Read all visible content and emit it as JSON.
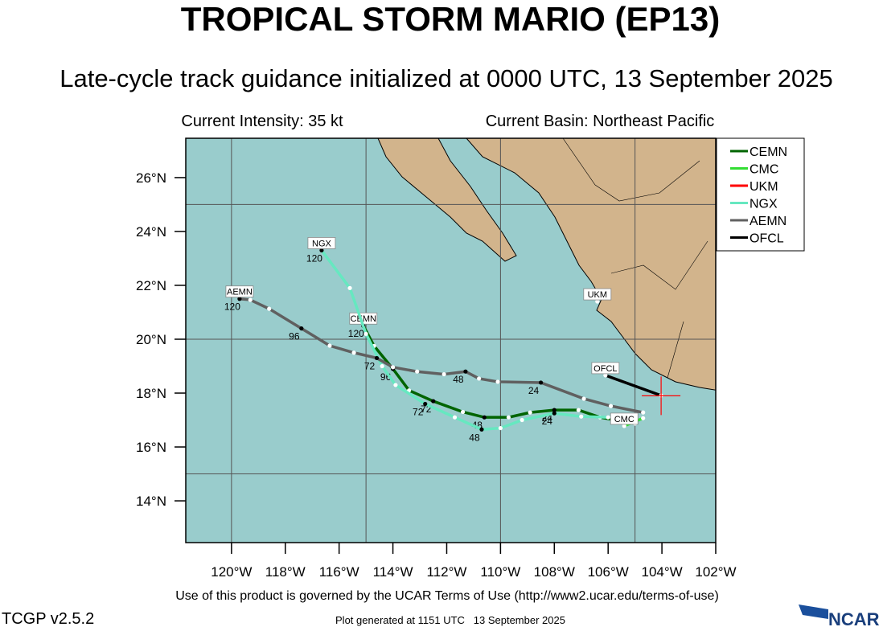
{
  "title": "TROPICAL STORM MARIO (EP13)",
  "subtitle": "Late-cycle track guidance initialized at 0000 UTC, 13 September 2025",
  "info_left": "Current Intensity: 35 kt",
  "info_right": "Current Basin: Northeast Pacific",
  "terms": "Use of this product is governed by the UCAR Terms of Use (http://www2.ucar.edu/terms-of-use)",
  "version": "TCGP v2.5.2",
  "generated": "Plot generated at 1151 UTC   13 September 2025",
  "logo": "NCAR",
  "chart_data": {
    "type": "track_map",
    "xlim": [
      -121.7,
      -102
    ],
    "ylim": [
      12.45,
      27.46
    ],
    "xticks": [
      {
        "value": -120,
        "label": "120°W"
      },
      {
        "value": -118,
        "label": "118°W"
      },
      {
        "value": -116,
        "label": "116°W"
      },
      {
        "value": -114,
        "label": "114°W"
      },
      {
        "value": -112,
        "label": "112°W"
      },
      {
        "value": -110,
        "label": "110°W"
      },
      {
        "value": -108,
        "label": "108°W"
      },
      {
        "value": -106,
        "label": "106°W"
      },
      {
        "value": -104,
        "label": "104°W"
      },
      {
        "value": -102,
        "label": "102°W"
      }
    ],
    "yticks": [
      {
        "value": 14,
        "label": "14°N"
      },
      {
        "value": 16,
        "label": "16°N"
      },
      {
        "value": 18,
        "label": "18°N"
      },
      {
        "value": 20,
        "label": "20°N"
      },
      {
        "value": 22,
        "label": "22°N"
      },
      {
        "value": 24,
        "label": "24°N"
      },
      {
        "value": 26,
        "label": "26°N"
      }
    ],
    "grid_lons": [
      -120,
      -115,
      -110,
      -105
    ],
    "grid_lats": [
      15,
      20,
      25
    ],
    "current_position": {
      "lon": -104.03,
      "lat": 17.9,
      "color": "#ff0000"
    },
    "series": [
      {
        "name": "CEMN",
        "color": "#006400",
        "lon": [
          -105.0,
          -106.3,
          -107.1,
          -108.0,
          -108.9,
          -109.7,
          -110.6,
          -111.4,
          -112.5,
          -113.4,
          -114.0,
          -114.7,
          -115.1
        ],
        "lat": [
          16.87,
          17.1,
          17.37,
          17.37,
          17.28,
          17.1,
          17.1,
          17.3,
          17.7,
          18.1,
          18.9,
          19.75,
          20.5
        ],
        "hour_labels": [
          null,
          null,
          null,
          24,
          null,
          null,
          48,
          null,
          72,
          null,
          96,
          null,
          120
        ]
      },
      {
        "name": "CMC",
        "color": "#33dd33",
        "lon": [
          -104.7,
          -105.4
        ],
        "lat": [
          17.07,
          16.78
        ],
        "hour_labels": [
          null,
          null
        ]
      },
      {
        "name": "UKM",
        "color": "#ff0000",
        "lon": [
          -106.4
        ],
        "lat": [
          21.4
        ],
        "hour_labels": [
          null
        ]
      },
      {
        "name": "NGX",
        "color": "#66e8c0",
        "lon": [
          -106.0,
          -107.0,
          -108.0,
          -109.2,
          -110.0,
          -110.7,
          -111.7,
          -112.8,
          -113.9,
          -114.4,
          -115.0,
          -115.6,
          -116.65
        ],
        "lat": [
          17.1,
          17.13,
          17.25,
          17.0,
          16.7,
          16.65,
          17.1,
          17.6,
          18.3,
          19.0,
          20.2,
          21.9,
          23.3
        ],
        "hour_labels": [
          null,
          null,
          24,
          null,
          null,
          48,
          null,
          72,
          null,
          null,
          null,
          null,
          120
        ]
      },
      {
        "name": "AEMN",
        "color": "#606060",
        "lon": [
          -104.7,
          -105.9,
          -106.9,
          -108.5,
          -110.1,
          -110.8,
          -111.3,
          -112.1,
          -113.1,
          -114.0,
          -114.6,
          -115.45,
          -116.35,
          -117.4,
          -118.6,
          -119.3,
          -119.7
        ],
        "lat": [
          17.28,
          17.52,
          17.79,
          18.39,
          18.42,
          18.54,
          18.8,
          18.7,
          18.8,
          18.96,
          19.3,
          19.5,
          19.76,
          20.4,
          21.13,
          21.46,
          21.5
        ],
        "hour_labels": [
          null,
          null,
          null,
          24,
          null,
          null,
          48,
          null,
          null,
          null,
          72,
          null,
          null,
          96,
          null,
          null,
          120
        ]
      },
      {
        "name": "OFCL",
        "color": "#000000",
        "lon": [
          -104.03,
          -106.1
        ],
        "lat": [
          17.91,
          18.66
        ],
        "hour_labels": [
          null,
          null
        ]
      }
    ]
  }
}
